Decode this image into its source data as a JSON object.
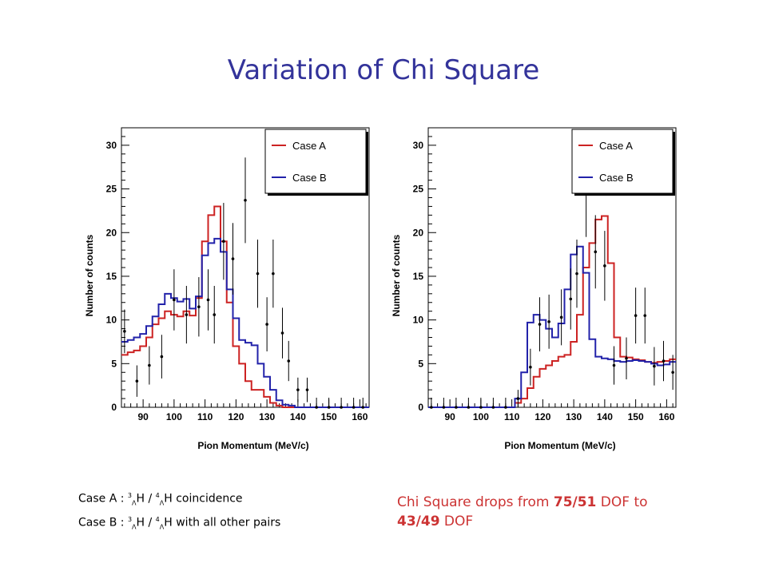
{
  "slide": {
    "title": "Variation of Chi Square"
  },
  "chart_data": [
    {
      "type": "line",
      "plot_style": "histogram-with-error-bars",
      "xlabel": "Pion Momentum (MeV/c)",
      "ylabel": "Number of counts",
      "xlim": [
        83,
        163
      ],
      "ylim": [
        0,
        32
      ],
      "xticks": [
        90,
        100,
        110,
        120,
        130,
        140,
        150,
        160
      ],
      "yticks": [
        0,
        5,
        10,
        15,
        20,
        25,
        30
      ],
      "legend_position": "top-right",
      "bin_edges": [
        83,
        85,
        87,
        89,
        91,
        93,
        95,
        97,
        99,
        101,
        103,
        105,
        107,
        109,
        111,
        113,
        115,
        117,
        119,
        121,
        123,
        125,
        127,
        129,
        131,
        133,
        135,
        137,
        139,
        141,
        143,
        145,
        147,
        149,
        151,
        153,
        155,
        157,
        159,
        161,
        163
      ],
      "series": [
        {
          "name": "Case A",
          "color": "#cc2222",
          "values": [
            6,
            6.3,
            6.5,
            7,
            8,
            9.5,
            10.2,
            11,
            10.6,
            10.4,
            11,
            10.5,
            12.5,
            19,
            22,
            23,
            19,
            12,
            7,
            5,
            3,
            2,
            2,
            1.2,
            0.5,
            0.2,
            0,
            0,
            0,
            0,
            0,
            0,
            0,
            0,
            0,
            0,
            0,
            0,
            0,
            0
          ]
        },
        {
          "name": "Case B",
          "color": "#2222aa",
          "values": [
            7.5,
            7.7,
            8,
            8.4,
            9.3,
            10.4,
            11.8,
            13,
            12.5,
            12.1,
            12.4,
            11.3,
            12.7,
            17.4,
            18.8,
            19.3,
            17.8,
            13.5,
            10.2,
            7.7,
            7.4,
            7.1,
            5,
            3.5,
            2,
            0.8,
            0.3,
            0.2,
            0,
            0,
            0,
            0,
            0,
            0,
            0,
            0,
            0,
            0,
            0,
            0
          ]
        }
      ],
      "data_points": [
        {
          "x": 84,
          "y": 8.7,
          "err": 2.5
        },
        {
          "x": 88,
          "y": 3,
          "err": 1.8
        },
        {
          "x": 92,
          "y": 4.8,
          "err": 2.2
        },
        {
          "x": 96,
          "y": 5.8,
          "err": 2.5
        },
        {
          "x": 100,
          "y": 12.3,
          "err": 3.5
        },
        {
          "x": 104,
          "y": 10.6,
          "err": 3.3
        },
        {
          "x": 108,
          "y": 11.5,
          "err": 3.4
        },
        {
          "x": 111,
          "y": 12.3,
          "err": 3.5
        },
        {
          "x": 113,
          "y": 10.6,
          "err": 3.3
        },
        {
          "x": 116,
          "y": 19,
          "err": 4.4
        },
        {
          "x": 119,
          "y": 17,
          "err": 4.1
        },
        {
          "x": 123,
          "y": 23.7,
          "err": 4.9
        },
        {
          "x": 127,
          "y": 15.3,
          "err": 3.9
        },
        {
          "x": 130,
          "y": 9.5,
          "err": 3.1
        },
        {
          "x": 132,
          "y": 15.3,
          "err": 3.9
        },
        {
          "x": 135,
          "y": 8.5,
          "err": 2.9
        },
        {
          "x": 137,
          "y": 5.3,
          "err": 2.3
        },
        {
          "x": 140,
          "y": 2,
          "err": 1.4
        },
        {
          "x": 143,
          "y": 2,
          "err": 1.4
        },
        {
          "x": 146,
          "y": 0,
          "err": 1.1
        },
        {
          "x": 150,
          "y": 0,
          "err": 1.1
        },
        {
          "x": 154,
          "y": 0,
          "err": 1.1
        },
        {
          "x": 158,
          "y": 0,
          "err": 1.1
        },
        {
          "x": 161,
          "y": 0,
          "err": 1.1
        }
      ]
    },
    {
      "type": "line",
      "plot_style": "histogram-with-error-bars",
      "xlabel": "Pion Momentum (MeV/c)",
      "ylabel": "Number of counts",
      "xlim": [
        83,
        163
      ],
      "ylim": [
        0,
        32
      ],
      "xticks": [
        90,
        100,
        110,
        120,
        130,
        140,
        150,
        160
      ],
      "yticks": [
        0,
        5,
        10,
        15,
        20,
        25,
        30
      ],
      "legend_position": "top-right",
      "bin_edges": [
        83,
        85,
        87,
        89,
        91,
        93,
        95,
        97,
        99,
        101,
        103,
        105,
        107,
        109,
        111,
        113,
        115,
        117,
        119,
        121,
        123,
        125,
        127,
        129,
        131,
        133,
        135,
        137,
        139,
        141,
        143,
        145,
        147,
        149,
        151,
        153,
        155,
        157,
        159,
        161,
        163
      ],
      "series": [
        {
          "name": "Case A",
          "color": "#cc2222",
          "values": [
            0,
            0,
            0,
            0,
            0,
            0,
            0,
            0,
            0,
            0,
            0,
            0,
            0,
            0,
            0.5,
            1,
            2.2,
            3.5,
            4.4,
            4.8,
            5.3,
            5.8,
            6,
            7.5,
            10.6,
            16,
            18.8,
            21.5,
            21.9,
            16.5,
            8,
            5.8,
            5.7,
            5.5,
            5.4,
            5.2,
            5.1,
            5.2,
            5.3,
            5.5
          ]
        },
        {
          "name": "Case B",
          "color": "#2222aa",
          "values": [
            0,
            0,
            0,
            0,
            0,
            0,
            0,
            0,
            0,
            0,
            0,
            0,
            0,
            0,
            1,
            4,
            9.7,
            10.6,
            10,
            9,
            8,
            9.6,
            13.5,
            17.5,
            18.4,
            15.4,
            7.8,
            5.8,
            5.6,
            5.5,
            5.3,
            5.2,
            5.3,
            5.4,
            5.3,
            5.2,
            5,
            4.8,
            4.9,
            5.2
          ]
        }
      ],
      "data_points": [
        {
          "x": 84,
          "y": 0,
          "err": 1.1
        },
        {
          "x": 88,
          "y": 0,
          "err": 1.1
        },
        {
          "x": 92,
          "y": 0,
          "err": 1.1
        },
        {
          "x": 96,
          "y": 0,
          "err": 1.1
        },
        {
          "x": 100,
          "y": 0,
          "err": 1.1
        },
        {
          "x": 104,
          "y": 0,
          "err": 1.1
        },
        {
          "x": 108,
          "y": 0,
          "err": 1.1
        },
        {
          "x": 112,
          "y": 1,
          "err": 1.0
        },
        {
          "x": 116,
          "y": 4.6,
          "err": 2.1
        },
        {
          "x": 119,
          "y": 9.5,
          "err": 3.1
        },
        {
          "x": 122,
          "y": 9.8,
          "err": 3.1
        },
        {
          "x": 126,
          "y": 10.3,
          "err": 3.2
        },
        {
          "x": 129,
          "y": 12.4,
          "err": 3.5
        },
        {
          "x": 131,
          "y": 15.3,
          "err": 3.9
        },
        {
          "x": 134,
          "y": 24.5,
          "err": 5.0
        },
        {
          "x": 137,
          "y": 17.8,
          "err": 4.2
        },
        {
          "x": 140,
          "y": 16.2,
          "err": 4.0
        },
        {
          "x": 143,
          "y": 4.8,
          "err": 2.2
        },
        {
          "x": 147,
          "y": 5.6,
          "err": 2.4
        },
        {
          "x": 150,
          "y": 10.5,
          "err": 3.2
        },
        {
          "x": 153,
          "y": 10.5,
          "err": 3.2
        },
        {
          "x": 156,
          "y": 4.7,
          "err": 2.2
        },
        {
          "x": 159,
          "y": 5.3,
          "err": 2.3
        },
        {
          "x": 162,
          "y": 4,
          "err": 2.0
        }
      ]
    }
  ],
  "notes": {
    "case_a": {
      "prefix": "Case A :",
      "mass_a": "3",
      "lambda_a": "Λ",
      "nucleus_a": "H /",
      "mass_b": "4",
      "lambda_b": "Λ",
      "nucleus_b": "H",
      "suffix": "coincidence"
    },
    "case_b": {
      "prefix": "Case B :",
      "mass_a": "3",
      "lambda_a": "Λ",
      "nucleus_a": "H /",
      "mass_b": "4",
      "lambda_b": "Λ",
      "nucleus_b": "H",
      "suffix": "with all other pairs"
    },
    "chi": {
      "text_1": "Chi Square drops from ",
      "value_1": "75/51",
      "text_2": " DOF to ",
      "value_2": "43/49",
      "text_3": " DOF"
    }
  },
  "colors": {
    "title": "#33339a",
    "note": "#cc3333"
  }
}
